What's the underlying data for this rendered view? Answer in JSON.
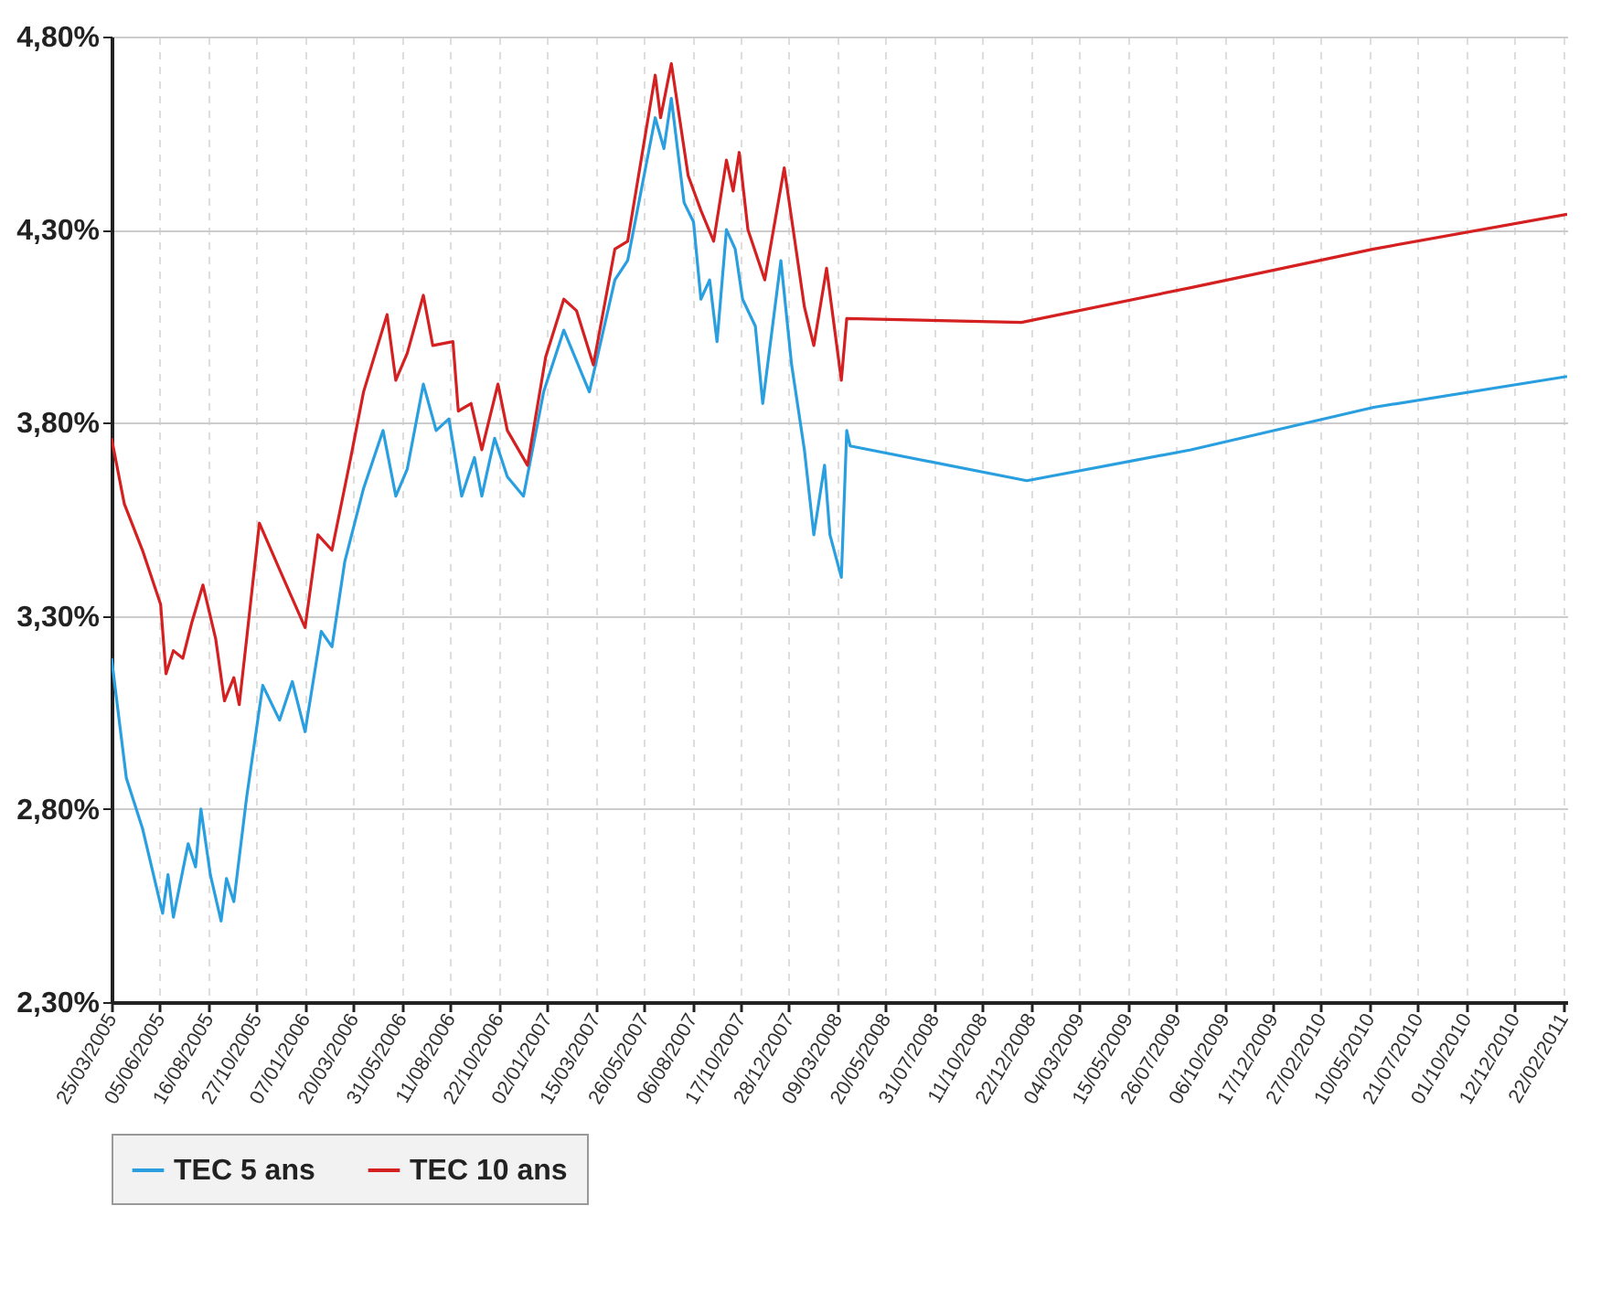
{
  "chart_data": {
    "type": "line",
    "xlim": [
      "2005-03-25",
      "2011-02-28"
    ],
    "xticks": [
      {
        "value": "2005-03-25",
        "label": "25/03/2005"
      },
      {
        "value": "2005-06-05",
        "label": "05/06/2005"
      },
      {
        "value": "2005-08-16",
        "label": "16/08/2005"
      },
      {
        "value": "2005-10-27",
        "label": "27/10/2005"
      },
      {
        "value": "2006-01-07",
        "label": "07/01/2006"
      },
      {
        "value": "2006-03-20",
        "label": "20/03/2006"
      },
      {
        "value": "2006-05-31",
        "label": "31/05/2006"
      },
      {
        "value": "2006-08-11",
        "label": "11/08/2006"
      },
      {
        "value": "2006-10-22",
        "label": "22/10/2006"
      },
      {
        "value": "2007-01-02",
        "label": "02/01/2007"
      },
      {
        "value": "2007-03-15",
        "label": "15/03/2007"
      },
      {
        "value": "2007-05-26",
        "label": "26/05/2007"
      },
      {
        "value": "2007-08-06",
        "label": "06/08/2007"
      },
      {
        "value": "2007-10-17",
        "label": "17/10/2007"
      },
      {
        "value": "2007-12-28",
        "label": "28/12/2007"
      },
      {
        "value": "2008-03-09",
        "label": "09/03/2008"
      },
      {
        "value": "2008-05-20",
        "label": "20/05/2008"
      },
      {
        "value": "2008-07-31",
        "label": "31/07/2008"
      },
      {
        "value": "2008-10-11",
        "label": "11/10/2008"
      },
      {
        "value": "2008-12-22",
        "label": "22/12/2008"
      },
      {
        "value": "2009-03-04",
        "label": "04/03/2009"
      },
      {
        "value": "2009-05-15",
        "label": "15/05/2009"
      },
      {
        "value": "2009-07-26",
        "label": "26/07/2009"
      },
      {
        "value": "2009-10-06",
        "label": "06/10/2009"
      },
      {
        "value": "2009-12-17",
        "label": "17/12/2009"
      },
      {
        "value": "2010-02-27",
        "label": "27/02/2010"
      },
      {
        "value": "2010-05-10",
        "label": "10/05/2010"
      },
      {
        "value": "2010-07-21",
        "label": "21/07/2010"
      },
      {
        "value": "2010-10-01",
        "label": "01/10/2010"
      },
      {
        "value": "2010-12-12",
        "label": "12/12/2010"
      },
      {
        "value": "2011-02-22",
        "label": "22/02/2011"
      }
    ],
    "ylim": [
      2.3,
      4.8
    ],
    "yticks": [
      {
        "value": 2.3,
        "label": "2,30%"
      },
      {
        "value": 2.8,
        "label": "2,80%"
      },
      {
        "value": 3.3,
        "label": "3,30%"
      },
      {
        "value": 3.8,
        "label": "3,80%"
      },
      {
        "value": 4.3,
        "label": "4,30%"
      },
      {
        "value": 4.8,
        "label": "4,80%"
      }
    ],
    "grid": true,
    "legend": "bottom",
    "marker": "none",
    "line_style": "solid",
    "series": [
      {
        "name": "TEC 5 ans",
        "color": "#2a9fe0",
        "x": [
          "2005-03-25",
          "2005-04-16",
          "2005-05-10",
          "2005-06-09",
          "2005-06-17",
          "2005-06-25",
          "2005-07-17",
          "2005-07-28",
          "2005-08-05",
          "2005-08-19",
          "2005-09-04",
          "2005-09-12",
          "2005-09-23",
          "2005-10-12",
          "2005-11-05",
          "2005-11-30",
          "2005-12-19",
          "2006-01-07",
          "2006-01-31",
          "2006-02-16",
          "2006-03-07",
          "2006-04-04",
          "2006-05-03",
          "2006-05-22",
          "2006-06-08",
          "2006-07-02",
          "2006-07-21",
          "2006-08-09",
          "2006-08-28",
          "2006-09-16",
          "2006-09-27",
          "2006-10-16",
          "2006-11-04",
          "2006-11-28",
          "2006-12-28",
          "2007-01-27",
          "2007-03-06",
          "2007-04-13",
          "2007-05-02",
          "2007-06-12",
          "2007-06-25",
          "2007-07-06",
          "2007-07-25",
          "2007-08-08",
          "2007-08-19",
          "2007-09-01",
          "2007-09-12",
          "2007-09-26",
          "2007-10-09",
          "2007-10-20",
          "2007-11-08",
          "2007-11-19",
          "2007-12-16",
          "2008-01-01",
          "2008-01-20",
          "2008-02-03",
          "2008-02-19",
          "2008-02-27",
          "2008-03-15",
          "2008-03-23",
          "2008-03-28",
          "2008-12-16",
          "2009-08-17",
          "2010-05-16",
          "2011-02-28"
        ],
        "values": [
          3.19,
          2.88,
          2.75,
          2.53,
          2.63,
          2.52,
          2.71,
          2.65,
          2.8,
          2.63,
          2.51,
          2.62,
          2.56,
          2.83,
          3.12,
          3.03,
          3.13,
          3.0,
          3.26,
          3.22,
          3.44,
          3.63,
          3.78,
          3.61,
          3.68,
          3.9,
          3.78,
          3.81,
          3.61,
          3.71,
          3.61,
          3.76,
          3.66,
          3.61,
          3.88,
          4.04,
          3.88,
          4.17,
          4.22,
          4.59,
          4.51,
          4.64,
          4.37,
          4.32,
          4.12,
          4.17,
          4.01,
          4.3,
          4.25,
          4.12,
          4.05,
          3.85,
          4.22,
          3.95,
          3.73,
          3.51,
          3.69,
          3.51,
          3.4,
          3.78,
          3.74,
          3.65,
          3.73,
          3.84,
          3.92
        ]
      },
      {
        "name": "TEC 10 ans",
        "color": "#d42020",
        "x": [
          "2005-03-25",
          "2005-04-13",
          "2005-05-10",
          "2005-06-06",
          "2005-06-14",
          "2005-06-25",
          "2005-07-09",
          "2005-07-22",
          "2005-08-08",
          "2005-08-27",
          "2005-09-09",
          "2005-09-23",
          "2005-10-01",
          "2005-10-12",
          "2005-10-31",
          "2005-11-30",
          "2006-01-07",
          "2006-01-26",
          "2006-02-16",
          "2006-03-16",
          "2006-04-04",
          "2006-05-09",
          "2006-05-22",
          "2006-06-08",
          "2006-07-02",
          "2006-07-16",
          "2006-08-15",
          "2006-08-23",
          "2006-09-11",
          "2006-09-27",
          "2006-10-21",
          "2006-11-04",
          "2006-12-04",
          "2006-12-31",
          "2007-01-27",
          "2007-02-15",
          "2007-03-12",
          "2007-04-13",
          "2007-05-02",
          "2007-06-12",
          "2007-06-20",
          "2007-07-06",
          "2007-07-31",
          "2007-08-19",
          "2007-09-07",
          "2007-09-26",
          "2007-10-06",
          "2007-10-15",
          "2007-10-28",
          "2007-11-22",
          "2007-12-21",
          "2008-01-20",
          "2008-02-03",
          "2008-02-22",
          "2008-03-15",
          "2008-03-23",
          "2008-12-08",
          "2009-08-17",
          "2010-05-16",
          "2011-02-28"
        ],
        "values": [
          3.76,
          3.59,
          3.47,
          3.33,
          3.15,
          3.21,
          3.19,
          3.28,
          3.38,
          3.24,
          3.08,
          3.14,
          3.07,
          3.24,
          3.54,
          3.42,
          3.27,
          3.51,
          3.47,
          3.71,
          3.88,
          4.08,
          3.91,
          3.98,
          4.13,
          4.0,
          4.01,
          3.83,
          3.85,
          3.73,
          3.9,
          3.78,
          3.69,
          3.97,
          4.12,
          4.09,
          3.95,
          4.25,
          4.27,
          4.7,
          4.59,
          4.73,
          4.44,
          4.35,
          4.27,
          4.48,
          4.4,
          4.5,
          4.3,
          4.17,
          4.46,
          4.1,
          4.0,
          4.2,
          3.91,
          4.07,
          4.06,
          4.15,
          4.25,
          4.34
        ]
      }
    ]
  }
}
